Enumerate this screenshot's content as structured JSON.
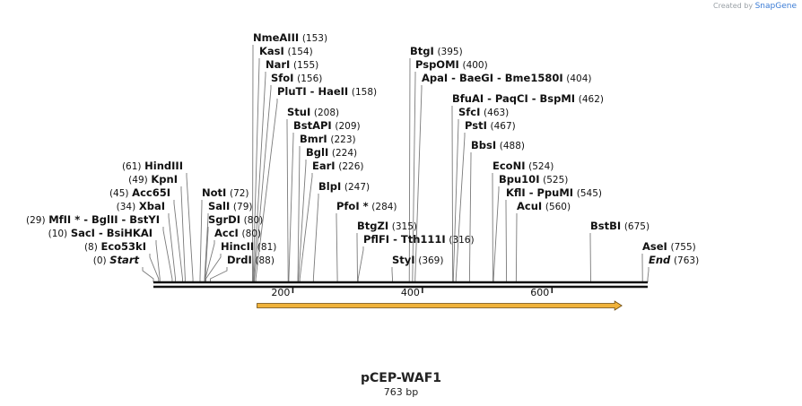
{
  "credit": {
    "prefix": "Created by",
    "brand": "SnapGene"
  },
  "plasmid": {
    "name": "pCEP-WAF1",
    "length": "763 bp"
  },
  "axis": {
    "ticks": [
      200,
      400,
      600
    ]
  },
  "feature": {
    "start": 160,
    "end": 730,
    "color": "#f0b23a",
    "direction": "forward"
  },
  "sites": [
    {
      "name": "NmeAIII",
      "pos": "(153)",
      "loc": 153,
      "side": "L"
    },
    {
      "name": "KasI",
      "pos": "(154)",
      "loc": 154,
      "side": "L"
    },
    {
      "name": "NarI",
      "pos": "(155)",
      "loc": 155,
      "side": "L"
    },
    {
      "name": "SfoI",
      "pos": "(156)",
      "loc": 156,
      "side": "L"
    },
    {
      "name": "PluTI  -  HaeII",
      "pos": "(158)",
      "loc": 158,
      "side": "L"
    },
    {
      "name": "StuI",
      "pos": "(208)",
      "loc": 208,
      "side": "L"
    },
    {
      "name": "BstAPI",
      "pos": "(209)",
      "loc": 209,
      "side": "L"
    },
    {
      "name": "BmrI",
      "pos": "(223)",
      "loc": 223,
      "side": "L"
    },
    {
      "name": "BglI",
      "pos": "(224)",
      "loc": 224,
      "side": "L"
    },
    {
      "name": "EarI",
      "pos": "(226)",
      "loc": 226,
      "side": "L"
    },
    {
      "name": "BlpI",
      "pos": "(247)",
      "loc": 247,
      "side": "L"
    },
    {
      "name": "PfoI *",
      "pos": "(284)",
      "loc": 284,
      "side": "L"
    },
    {
      "name": "BtgZI",
      "pos": "(315)",
      "loc": 315,
      "side": "L"
    },
    {
      "name": "PflFI  -  Tth111I",
      "pos": "(316)",
      "loc": 316,
      "side": "L"
    },
    {
      "name": "StyI",
      "pos": "(369)",
      "loc": 369,
      "side": "L"
    },
    {
      "name": "BtgI",
      "pos": "(395)",
      "loc": 395,
      "side": "L"
    },
    {
      "name": "PspOMI",
      "pos": "(400)",
      "loc": 400,
      "side": "L"
    },
    {
      "name": "ApaI  -  BaeGI  -  Bme1580I",
      "pos": "(404)",
      "loc": 404,
      "side": "L"
    },
    {
      "name": "BfuAI  -  PaqCI  -  BspMI",
      "pos": "(462)",
      "loc": 462,
      "side": "L"
    },
    {
      "name": "SfcI",
      "pos": "(463)",
      "loc": 463,
      "side": "L"
    },
    {
      "name": "PstI",
      "pos": "(467)",
      "loc": 467,
      "side": "L"
    },
    {
      "name": "BbsI",
      "pos": "(488)",
      "loc": 488,
      "side": "L"
    },
    {
      "name": "EcoNI",
      "pos": "(524)",
      "loc": 524,
      "side": "L"
    },
    {
      "name": "Bpu10I",
      "pos": "(525)",
      "loc": 525,
      "side": "L"
    },
    {
      "name": "KflI  -  PpuMI",
      "pos": "(545)",
      "loc": 545,
      "side": "L"
    },
    {
      "name": "AcuI",
      "pos": "(560)",
      "loc": 560,
      "side": "L"
    },
    {
      "name": "BstBI",
      "pos": "(675)",
      "loc": 675,
      "side": "L"
    },
    {
      "name": "AseI",
      "pos": "(755)",
      "loc": 755,
      "side": "L"
    },
    {
      "name": "End",
      "pos": "(763)",
      "loc": 763,
      "side": "L",
      "italic": true
    },
    {
      "name": "HindIII",
      "pos": "(61)",
      "loc": 61,
      "side": "R"
    },
    {
      "name": "KpnI",
      "pos": "(49)",
      "loc": 49,
      "side": "R"
    },
    {
      "name": "Acc65I",
      "pos": "(45)",
      "loc": 45,
      "side": "R"
    },
    {
      "name": "XbaI",
      "pos": "(34)",
      "loc": 34,
      "side": "R"
    },
    {
      "name": "MfII *  -  BglII  -  BstYI",
      "pos": "(29)",
      "loc": 29,
      "side": "R"
    },
    {
      "name": "SacI  -  BsiHKAI",
      "pos": "(10)",
      "loc": 10,
      "side": "R"
    },
    {
      "name": "Eco53kI",
      "pos": "(8)",
      "loc": 8,
      "side": "R"
    },
    {
      "name": "Start",
      "pos": "(0)",
      "loc": 0,
      "side": "R",
      "italic": true
    },
    {
      "name": "NotI",
      "pos": "(72)",
      "loc": 72,
      "side": "L"
    },
    {
      "name": "SalI",
      "pos": "(79)",
      "loc": 79,
      "side": "L"
    },
    {
      "name": "SgrDI",
      "pos": "(80)",
      "loc": 80,
      "side": "L"
    },
    {
      "name": "AccI",
      "pos": "(80)",
      "loc": 80,
      "side": "L"
    },
    {
      "name": "HincII",
      "pos": "(81)",
      "loc": 81,
      "side": "L"
    },
    {
      "name": "DrdI",
      "pos": "(88)",
      "loc": 88,
      "side": "L"
    }
  ]
}
